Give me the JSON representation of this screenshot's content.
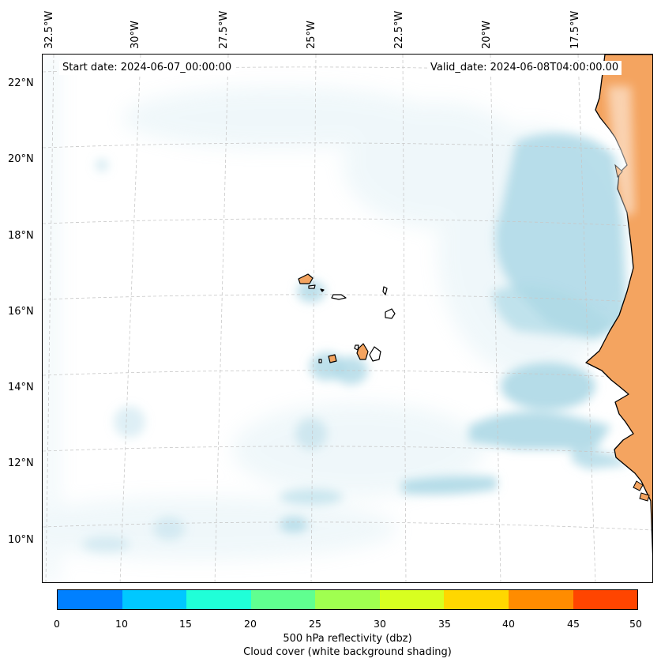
{
  "map": {
    "start_date_text": "Start date: 2024-06-07_00:00:00",
    "valid_date_text": "Valid_date: 2024-06-08T04:00:00.00",
    "longitude_labels": [
      "32.5°W",
      "30°W",
      "27.5°W",
      "25°W",
      "22.5°W",
      "20°W",
      "17.5°W"
    ],
    "latitude_labels": [
      "22°N",
      "20°N",
      "18°N",
      "16°N",
      "14°N",
      "12°N",
      "10°N"
    ],
    "colors": {
      "land": "#f4a460",
      "cloud": "#add8e6",
      "coastline": "#000000",
      "gridline": "#c8c8c8"
    },
    "grid": "dashed"
  },
  "colorbar": {
    "title": "500 hPa reflectivity (dbz)",
    "subtitle": "Cloud cover (white background shading)",
    "ticks": [
      "0",
      "10",
      "15",
      "20",
      "25",
      "30",
      "35",
      "40",
      "45",
      "50"
    ],
    "colors": [
      "#0080ff",
      "#00c8ff",
      "#20ffd8",
      "#60ff90",
      "#a0ff50",
      "#d8ff20",
      "#ffd700",
      "#ff8c00",
      "#ff4500"
    ]
  }
}
